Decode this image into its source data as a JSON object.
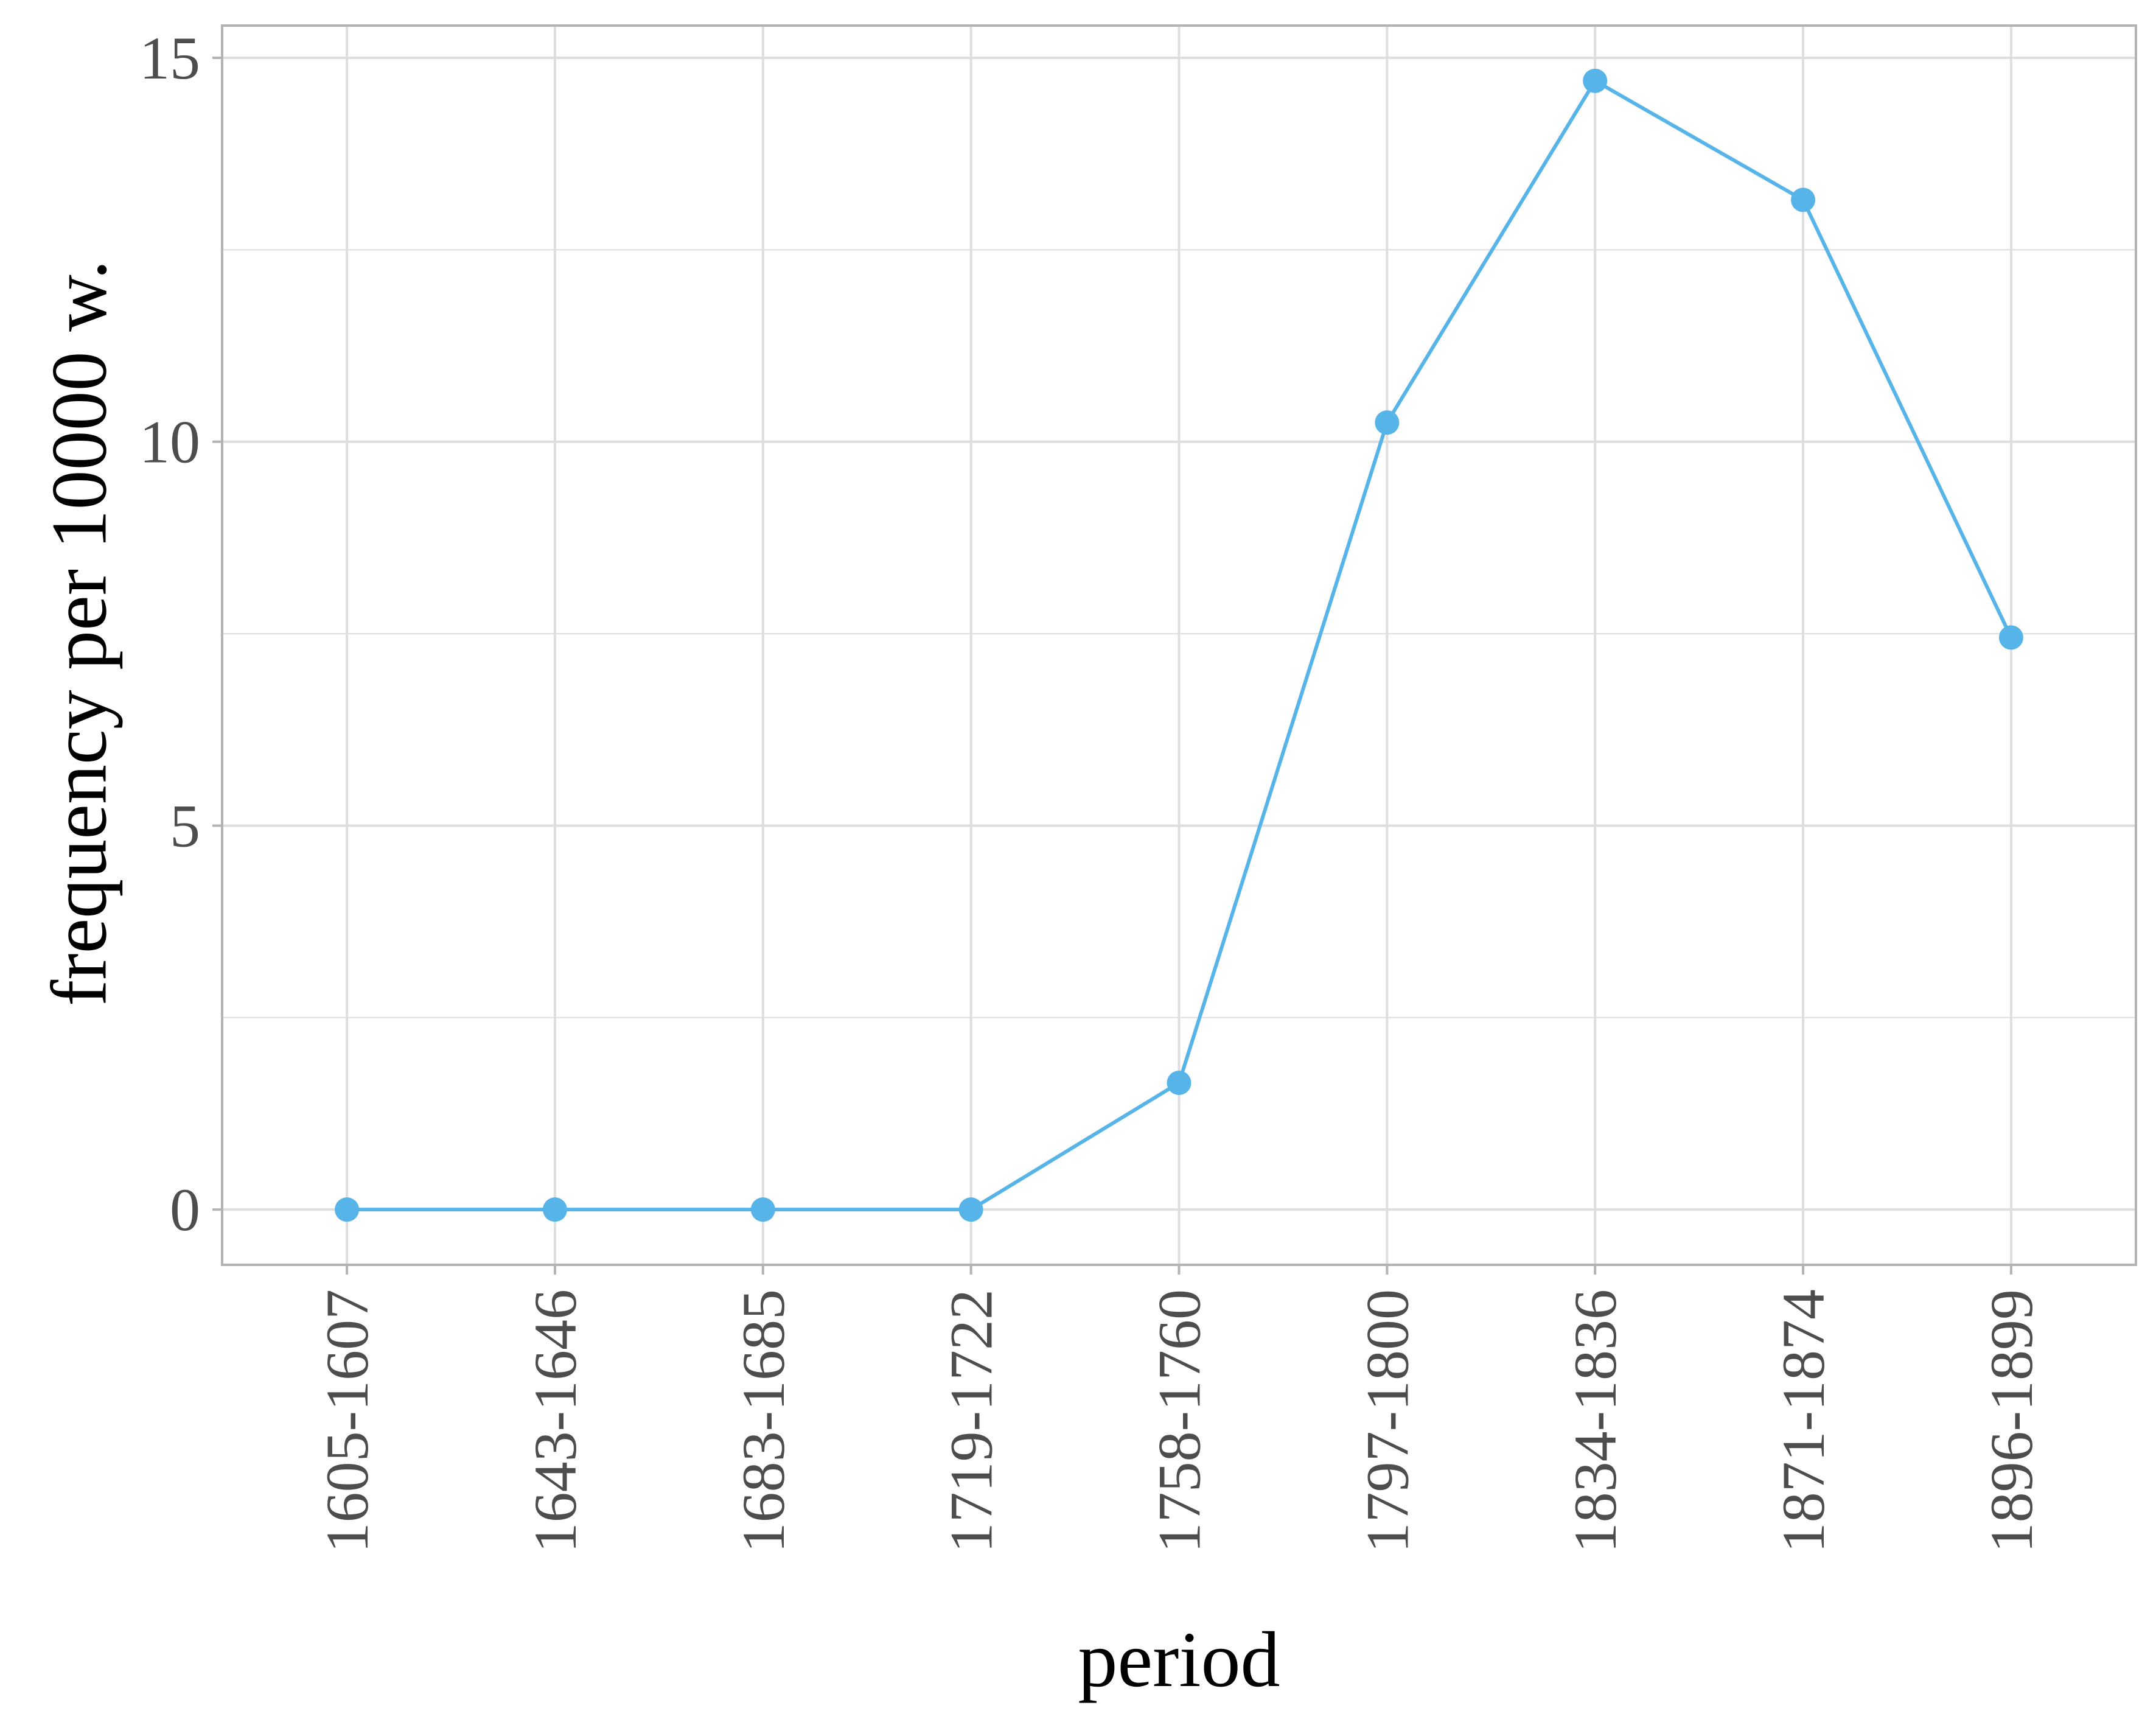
{
  "chart_data": {
    "type": "line",
    "title": "",
    "xlabel": "period",
    "ylabel": "frequency per 10000 w.",
    "categories": [
      "1605-1607",
      "1643-1646",
      "1683-1685",
      "1719-1722",
      "1758-1760",
      "1797-1800",
      "1834-1836",
      "1871-1874",
      "1896-1899"
    ],
    "values": [
      0,
      0,
      0,
      0,
      1.65,
      10.25,
      14.7,
      13.15,
      7.45
    ],
    "ylim": [
      -0.72,
      15.42
    ],
    "yticks": [
      0,
      5,
      10,
      15
    ],
    "ytick_labels": [
      "0",
      "5",
      "10",
      "15"
    ],
    "grid": true,
    "legend": "none",
    "colors": {
      "line": "#56B4E9",
      "grid": "#dedede",
      "panel_border": "#b3b3b3",
      "tick_text": "#4d4d4d"
    }
  }
}
